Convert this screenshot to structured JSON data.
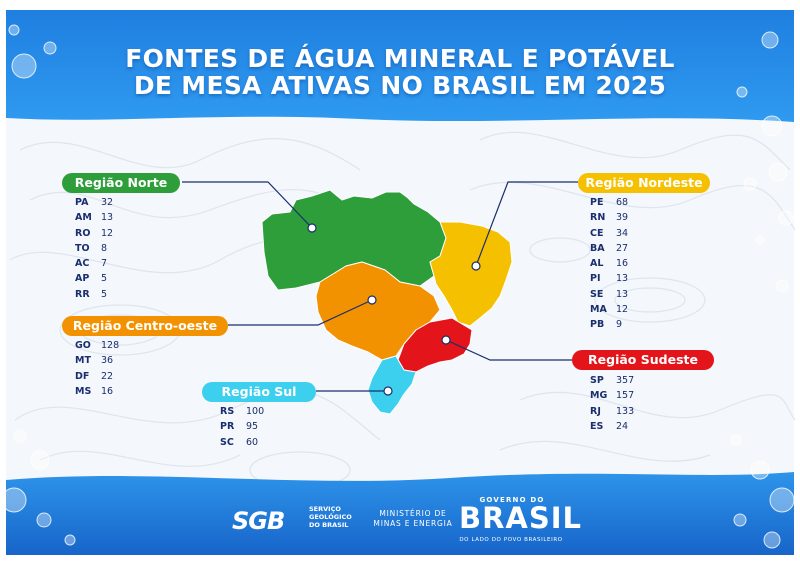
{
  "title": {
    "line1": "FONTES DE ÁGUA MINERAL E POTÁVEL",
    "line2": "DE MESA ATIVAS NO BRASIL EM 2025"
  },
  "colors": {
    "norte": "#2e9e3a",
    "nordeste": "#f5c000",
    "centro_oeste": "#f39200",
    "sudeste": "#e3151b",
    "sul": "#3dd0ee",
    "text": "#1a2e6e",
    "banner": "#1a6fd1"
  },
  "regions": [
    {
      "id": "norte",
      "name": "Região Norte",
      "color": "#2e9e3a",
      "items": [
        {
          "uf": "PA",
          "value": "32"
        },
        {
          "uf": "AM",
          "value": "13"
        },
        {
          "uf": "RO",
          "value": "12"
        },
        {
          "uf": "TO",
          "value": "8"
        },
        {
          "uf": "AC",
          "value": "7"
        },
        {
          "uf": "AP",
          "value": "5"
        },
        {
          "uf": "RR",
          "value": "5"
        }
      ]
    },
    {
      "id": "centro-oeste",
      "name": "Região Centro-oeste",
      "color": "#f39200",
      "items": [
        {
          "uf": "GO",
          "value": "128"
        },
        {
          "uf": "MT",
          "value": "36"
        },
        {
          "uf": "DF",
          "value": "22"
        },
        {
          "uf": "MS",
          "value": "16"
        }
      ]
    },
    {
      "id": "sul",
      "name": "Região Sul",
      "color": "#3dd0ee",
      "items": [
        {
          "uf": "RS",
          "value": "100"
        },
        {
          "uf": "PR",
          "value": "95"
        },
        {
          "uf": "SC",
          "value": "60"
        }
      ]
    },
    {
      "id": "nordeste",
      "name": "Região Nordeste",
      "color": "#f5c000",
      "items": [
        {
          "uf": "PE",
          "value": "68"
        },
        {
          "uf": "RN",
          "value": "39"
        },
        {
          "uf": "CE",
          "value": "34"
        },
        {
          "uf": "BA",
          "value": "27"
        },
        {
          "uf": "AL",
          "value": "16"
        },
        {
          "uf": "PI",
          "value": "13"
        },
        {
          "uf": "SE",
          "value": "13"
        },
        {
          "uf": "MA",
          "value": "12"
        },
        {
          "uf": "PB",
          "value": "9"
        }
      ]
    },
    {
      "id": "sudeste",
      "name": "Região Sudeste",
      "color": "#e3151b",
      "items": [
        {
          "uf": "SP",
          "value": "357"
        },
        {
          "uf": "MG",
          "value": "157"
        },
        {
          "uf": "RJ",
          "value": "133"
        },
        {
          "uf": "ES",
          "value": "24"
        }
      ]
    }
  ],
  "footer": {
    "sge_logo": "SGB",
    "sge_line1": "SERVIÇO",
    "sge_line2": "GEOLÓGICO",
    "sge_line3": "DO BRASIL",
    "mme_line1": "MINISTÉRIO DE",
    "mme_line2": "MINAS E ENERGIA",
    "gov_top": "GOVERNO DO",
    "gov_main": "BRASIL",
    "gov_bottom": "DO LADO DO POVO BRASILEIRO"
  }
}
